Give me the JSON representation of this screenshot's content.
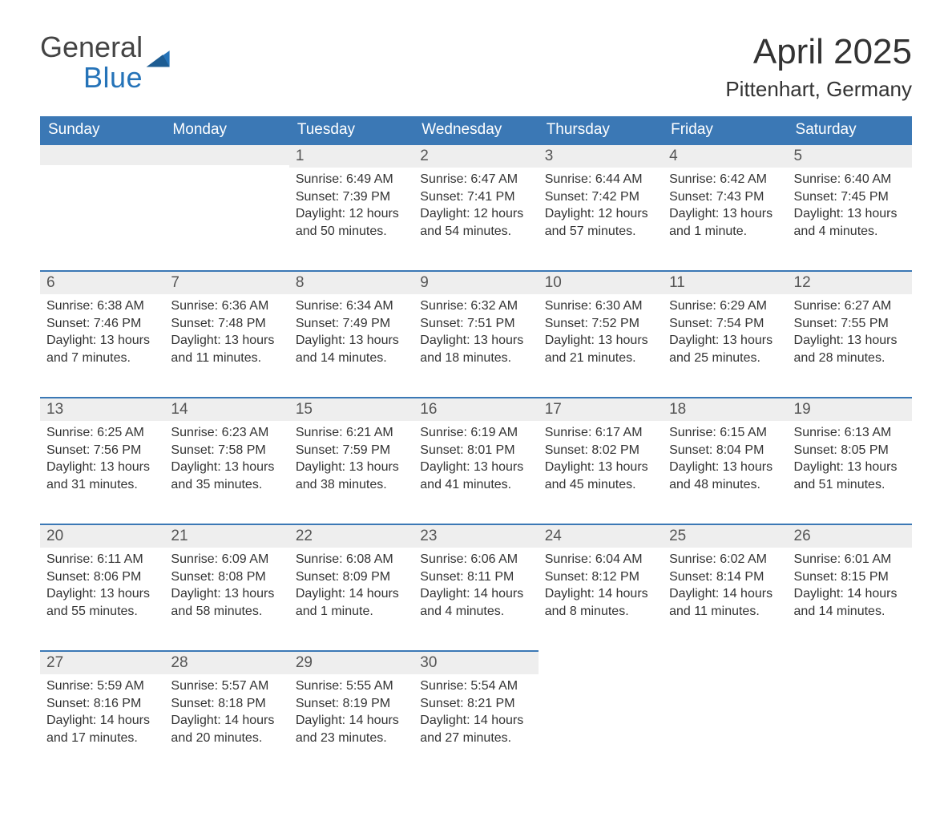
{
  "brand": {
    "word1": "General",
    "word2": "Blue",
    "colors": {
      "word1": "#444444",
      "word2": "#2573b8",
      "mark": "#2573b8"
    }
  },
  "title": "April 2025",
  "location": "Pittenhart, Germany",
  "theme": {
    "header_bg": "#3b78b5",
    "header_text": "#ffffff",
    "daynum_bg": "#eeeeee",
    "row_border": "#3b78b5",
    "body_text": "#333333",
    "page_bg": "#ffffff",
    "title_fontsize": 44,
    "location_fontsize": 26,
    "header_fontsize": 19,
    "cell_fontsize": 16
  },
  "weekdays": [
    "Sunday",
    "Monday",
    "Tuesday",
    "Wednesday",
    "Thursday",
    "Friday",
    "Saturday"
  ],
  "weeks": [
    [
      null,
      null,
      {
        "n": "1",
        "sr": "Sunrise: 6:49 AM",
        "ss": "Sunset: 7:39 PM",
        "dl": "Daylight: 12 hours and 50 minutes."
      },
      {
        "n": "2",
        "sr": "Sunrise: 6:47 AM",
        "ss": "Sunset: 7:41 PM",
        "dl": "Daylight: 12 hours and 54 minutes."
      },
      {
        "n": "3",
        "sr": "Sunrise: 6:44 AM",
        "ss": "Sunset: 7:42 PM",
        "dl": "Daylight: 12 hours and 57 minutes."
      },
      {
        "n": "4",
        "sr": "Sunrise: 6:42 AM",
        "ss": "Sunset: 7:43 PM",
        "dl": "Daylight: 13 hours and 1 minute."
      },
      {
        "n": "5",
        "sr": "Sunrise: 6:40 AM",
        "ss": "Sunset: 7:45 PM",
        "dl": "Daylight: 13 hours and 4 minutes."
      }
    ],
    [
      {
        "n": "6",
        "sr": "Sunrise: 6:38 AM",
        "ss": "Sunset: 7:46 PM",
        "dl": "Daylight: 13 hours and 7 minutes."
      },
      {
        "n": "7",
        "sr": "Sunrise: 6:36 AM",
        "ss": "Sunset: 7:48 PM",
        "dl": "Daylight: 13 hours and 11 minutes."
      },
      {
        "n": "8",
        "sr": "Sunrise: 6:34 AM",
        "ss": "Sunset: 7:49 PM",
        "dl": "Daylight: 13 hours and 14 minutes."
      },
      {
        "n": "9",
        "sr": "Sunrise: 6:32 AM",
        "ss": "Sunset: 7:51 PM",
        "dl": "Daylight: 13 hours and 18 minutes."
      },
      {
        "n": "10",
        "sr": "Sunrise: 6:30 AM",
        "ss": "Sunset: 7:52 PM",
        "dl": "Daylight: 13 hours and 21 minutes."
      },
      {
        "n": "11",
        "sr": "Sunrise: 6:29 AM",
        "ss": "Sunset: 7:54 PM",
        "dl": "Daylight: 13 hours and 25 minutes."
      },
      {
        "n": "12",
        "sr": "Sunrise: 6:27 AM",
        "ss": "Sunset: 7:55 PM",
        "dl": "Daylight: 13 hours and 28 minutes."
      }
    ],
    [
      {
        "n": "13",
        "sr": "Sunrise: 6:25 AM",
        "ss": "Sunset: 7:56 PM",
        "dl": "Daylight: 13 hours and 31 minutes."
      },
      {
        "n": "14",
        "sr": "Sunrise: 6:23 AM",
        "ss": "Sunset: 7:58 PM",
        "dl": "Daylight: 13 hours and 35 minutes."
      },
      {
        "n": "15",
        "sr": "Sunrise: 6:21 AM",
        "ss": "Sunset: 7:59 PM",
        "dl": "Daylight: 13 hours and 38 minutes."
      },
      {
        "n": "16",
        "sr": "Sunrise: 6:19 AM",
        "ss": "Sunset: 8:01 PM",
        "dl": "Daylight: 13 hours and 41 minutes."
      },
      {
        "n": "17",
        "sr": "Sunrise: 6:17 AM",
        "ss": "Sunset: 8:02 PM",
        "dl": "Daylight: 13 hours and 45 minutes."
      },
      {
        "n": "18",
        "sr": "Sunrise: 6:15 AM",
        "ss": "Sunset: 8:04 PM",
        "dl": "Daylight: 13 hours and 48 minutes."
      },
      {
        "n": "19",
        "sr": "Sunrise: 6:13 AM",
        "ss": "Sunset: 8:05 PM",
        "dl": "Daylight: 13 hours and 51 minutes."
      }
    ],
    [
      {
        "n": "20",
        "sr": "Sunrise: 6:11 AM",
        "ss": "Sunset: 8:06 PM",
        "dl": "Daylight: 13 hours and 55 minutes."
      },
      {
        "n": "21",
        "sr": "Sunrise: 6:09 AM",
        "ss": "Sunset: 8:08 PM",
        "dl": "Daylight: 13 hours and 58 minutes."
      },
      {
        "n": "22",
        "sr": "Sunrise: 6:08 AM",
        "ss": "Sunset: 8:09 PM",
        "dl": "Daylight: 14 hours and 1 minute."
      },
      {
        "n": "23",
        "sr": "Sunrise: 6:06 AM",
        "ss": "Sunset: 8:11 PM",
        "dl": "Daylight: 14 hours and 4 minutes."
      },
      {
        "n": "24",
        "sr": "Sunrise: 6:04 AM",
        "ss": "Sunset: 8:12 PM",
        "dl": "Daylight: 14 hours and 8 minutes."
      },
      {
        "n": "25",
        "sr": "Sunrise: 6:02 AM",
        "ss": "Sunset: 8:14 PM",
        "dl": "Daylight: 14 hours and 11 minutes."
      },
      {
        "n": "26",
        "sr": "Sunrise: 6:01 AM",
        "ss": "Sunset: 8:15 PM",
        "dl": "Daylight: 14 hours and 14 minutes."
      }
    ],
    [
      {
        "n": "27",
        "sr": "Sunrise: 5:59 AM",
        "ss": "Sunset: 8:16 PM",
        "dl": "Daylight: 14 hours and 17 minutes."
      },
      {
        "n": "28",
        "sr": "Sunrise: 5:57 AM",
        "ss": "Sunset: 8:18 PM",
        "dl": "Daylight: 14 hours and 20 minutes."
      },
      {
        "n": "29",
        "sr": "Sunrise: 5:55 AM",
        "ss": "Sunset: 8:19 PM",
        "dl": "Daylight: 14 hours and 23 minutes."
      },
      {
        "n": "30",
        "sr": "Sunrise: 5:54 AM",
        "ss": "Sunset: 8:21 PM",
        "dl": "Daylight: 14 hours and 27 minutes."
      },
      null,
      null,
      null
    ]
  ]
}
